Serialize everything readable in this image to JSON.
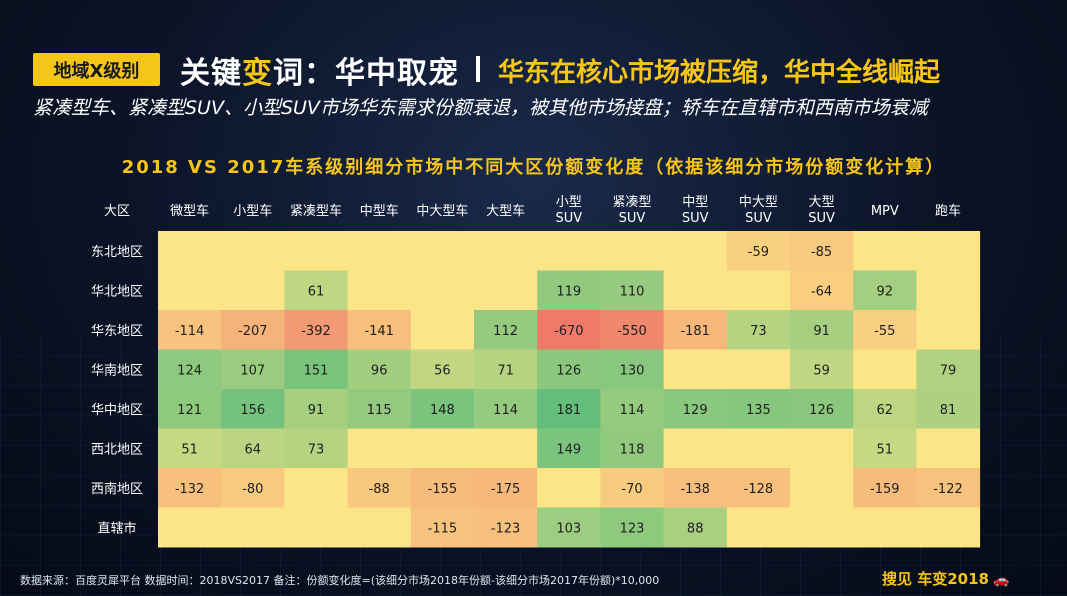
{
  "header": {
    "tag": "地域X级别",
    "title_prefix": "关键",
    "title_highlight": "变",
    "title_suffix": "词：华中取宠",
    "title_sub": "华东在核心市场被压缩，华中全线崛起",
    "subtitle": "紧凑型车、紧凑型SUV、小型SUV市场华东需求份额衰退，被其他市场接盘；轿车在直辖市和西南市场衰减"
  },
  "footer": {
    "note": "数据来源：百度灵犀平台    数据时间：2018VS2017   备注：份额变化度=(该细分市场2018年份额-该细分市场2017年份额)*10,000",
    "brand": "搜见 车变2018",
    "car_icon": "car-icon"
  },
  "chart_data": {
    "type": "heatmap",
    "title": "2018 VS 2017车系级别细分市场中不同大区份额变化度（依据该细分市场份额变化计算）",
    "row_header": "大区",
    "columns": [
      [
        "微型车"
      ],
      [
        "小型车"
      ],
      [
        "紧凑型车"
      ],
      [
        "中型车"
      ],
      [
        "中大型车"
      ],
      [
        "大型车"
      ],
      [
        "小型",
        "SUV"
      ],
      [
        "紧凑型",
        "SUV"
      ],
      [
        "中型",
        "SUV"
      ],
      [
        "中大型",
        "SUV"
      ],
      [
        "大型",
        "SUV"
      ],
      [
        "MPV"
      ],
      [
        "跑车"
      ]
    ],
    "rows": [
      "东北地区",
      "华北地区",
      "华东地区",
      "华南地区",
      "华中地区",
      "西北地区",
      "西南地区",
      "直辖市"
    ],
    "values": [
      [
        null,
        null,
        null,
        null,
        null,
        null,
        null,
        null,
        null,
        -59,
        -85,
        null,
        null
      ],
      [
        null,
        null,
        61,
        null,
        null,
        null,
        119,
        110,
        null,
        null,
        -64,
        92,
        null
      ],
      [
        -114,
        -207,
        -392,
        -141,
        null,
        112,
        -670,
        -550,
        -181,
        73,
        91,
        -55,
        null
      ],
      [
        124,
        107,
        151,
        96,
        56,
        71,
        126,
        130,
        null,
        null,
        59,
        null,
        79
      ],
      [
        121,
        156,
        91,
        115,
        148,
        114,
        181,
        114,
        129,
        135,
        126,
        62,
        81
      ],
      [
        51,
        64,
        73,
        null,
        null,
        null,
        149,
        118,
        null,
        null,
        null,
        51,
        null
      ],
      [
        -132,
        -80,
        null,
        -88,
        -155,
        -175,
        null,
        -70,
        -138,
        -128,
        null,
        -159,
        -122
      ],
      [
        null,
        null,
        null,
        null,
        -115,
        -123,
        103,
        123,
        88,
        null,
        null,
        null,
        null
      ]
    ],
    "color_scale": {
      "negative_max": "#f07a6a",
      "neutral": "#fbe587",
      "positive_max": "#63be7b"
    }
  }
}
